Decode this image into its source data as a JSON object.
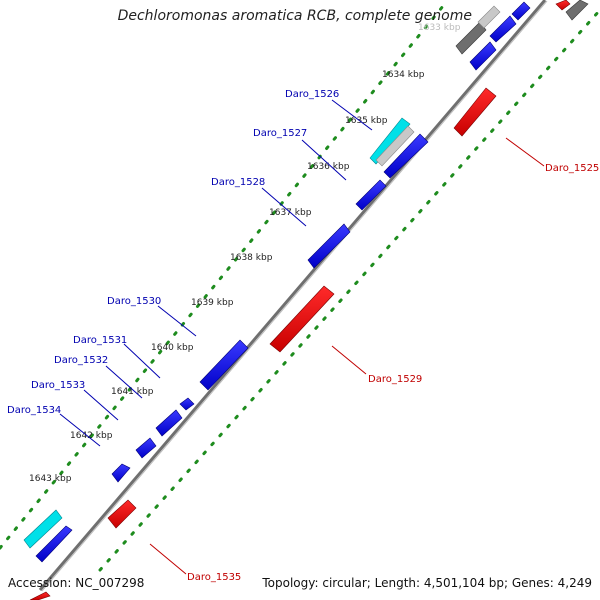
{
  "title": "Dechloromonas aromatica RCB, complete genome",
  "accession": "Accession: NC_007298",
  "summary": "Topology: circular; Length: 4,501,104 bp; Genes: 4,249",
  "colors": {
    "forward_gene": "#0a0adc",
    "reverse_gene": "#e00000",
    "highlight_gene": "#00d8e0",
    "pseudo_gene": "#707070",
    "backbone": "#8a8a8a",
    "tick_dots": "#1e8c1e",
    "label_forward": "#0000b0",
    "label_reverse": "#c00000"
  },
  "kbp_ticks": [
    "1633 kbp",
    "1634 kbp",
    "1635 kbp",
    "1636 kbp",
    "1637 kbp",
    "1638 kbp",
    "1639 kbp",
    "1640 kbp",
    "1641 kbp",
    "1642 kbp",
    "1643 kbp"
  ],
  "gene_labels": {
    "forward": [
      "Daro_1526",
      "Daro_1527",
      "Daro_1528",
      "Daro_1530",
      "Daro_1531",
      "Daro_1532",
      "Daro_1533",
      "Daro_1534"
    ],
    "reverse": [
      "Daro_1525",
      "Daro_1529",
      "Daro_1535"
    ]
  }
}
